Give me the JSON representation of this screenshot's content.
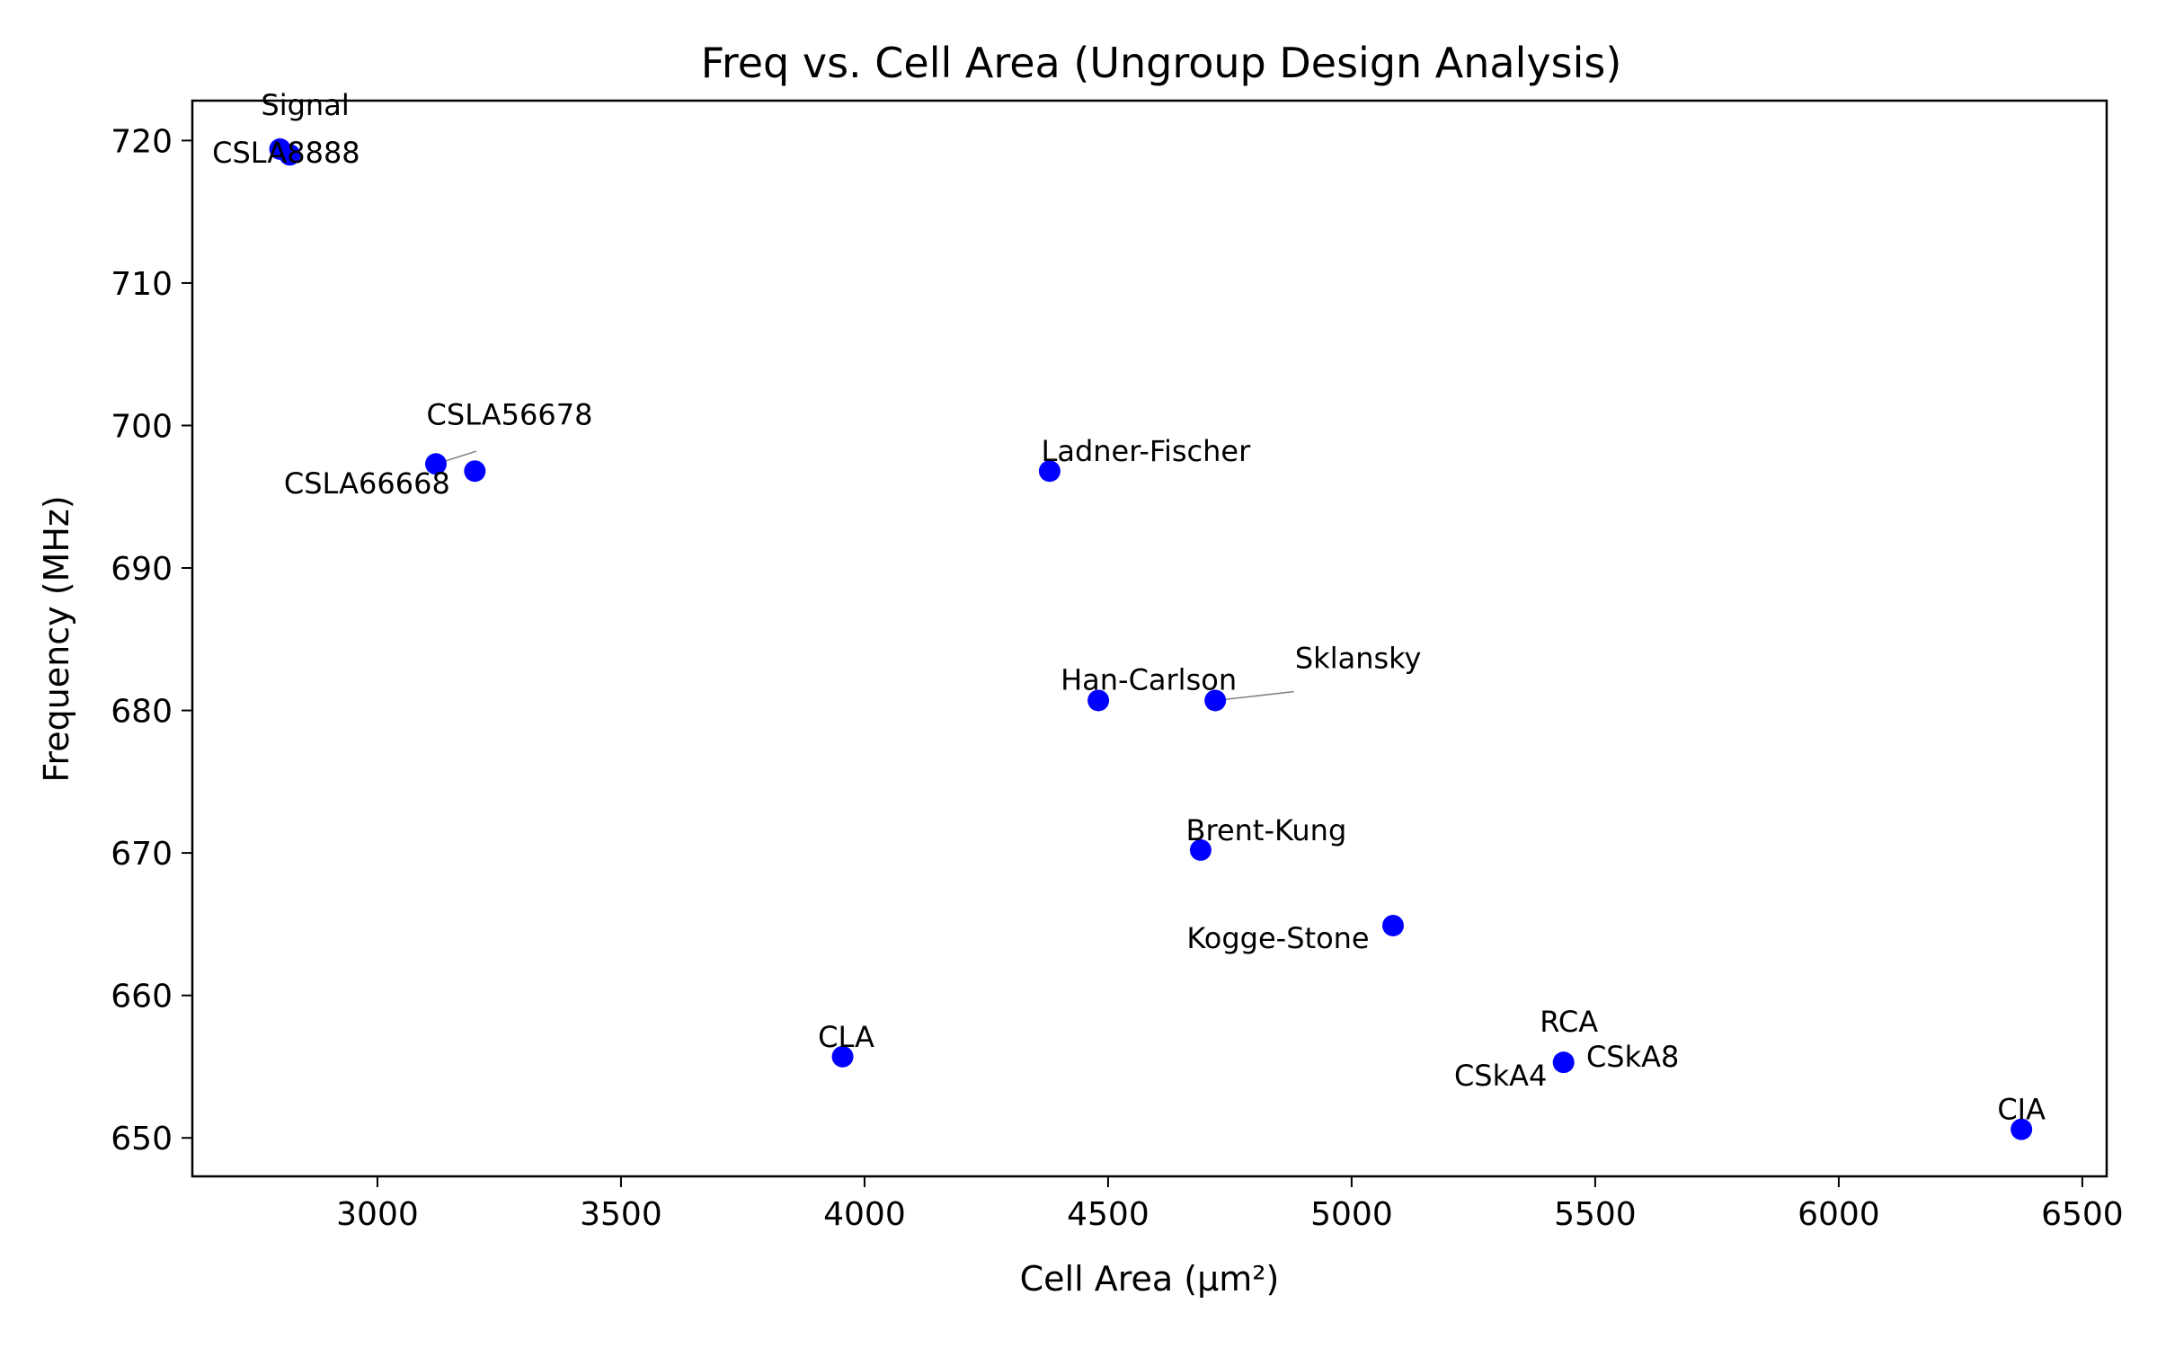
{
  "chart_data": {
    "type": "scatter",
    "title": "Freq vs. Cell Area (Ungroup Design Analysis)",
    "xlabel": "Cell Area (μm²)",
    "ylabel": "Frequency (MHz)",
    "xlim": [
      2620,
      6550
    ],
    "ylim": [
      647.3,
      722.8
    ],
    "xticks": [
      3000,
      3500,
      4000,
      4500,
      5000,
      5500,
      6000,
      6500
    ],
    "yticks": [
      650,
      660,
      670,
      680,
      690,
      700,
      710,
      720
    ],
    "grid": false,
    "legend": "none",
    "marker_color": "#0000ff",
    "leader_color": "#808080",
    "points": [
      {
        "label": "Signal",
        "x": 2800,
        "y": 719.4
      },
      {
        "label": "CSLA8888",
        "x": 2820,
        "y": 719.0
      },
      {
        "label": "CSLA56678",
        "x": 3120,
        "y": 697.3
      },
      {
        "label": "CSLA66668",
        "x": 3200,
        "y": 696.8
      },
      {
        "label": "Ladner-Fischer",
        "x": 4380,
        "y": 696.8
      },
      {
        "label": "Han-Carlson",
        "x": 4480,
        "y": 680.7
      },
      {
        "label": "Sklansky",
        "x": 4720,
        "y": 680.7
      },
      {
        "label": "Brent-Kung",
        "x": 4690,
        "y": 670.2
      },
      {
        "label": "Kogge-Stone",
        "x": 5085,
        "y": 664.9
      },
      {
        "label": "CLA",
        "x": 3955,
        "y": 655.7
      },
      {
        "label": "RCA",
        "x": 5435,
        "y": 655.3
      },
      {
        "label": "CSkA8",
        "x": 5435,
        "y": 655.3
      },
      {
        "label": "CSkA4",
        "x": 5435,
        "y": 655.3
      },
      {
        "label": "CIA",
        "x": 6375,
        "y": 650.6
      }
    ]
  }
}
